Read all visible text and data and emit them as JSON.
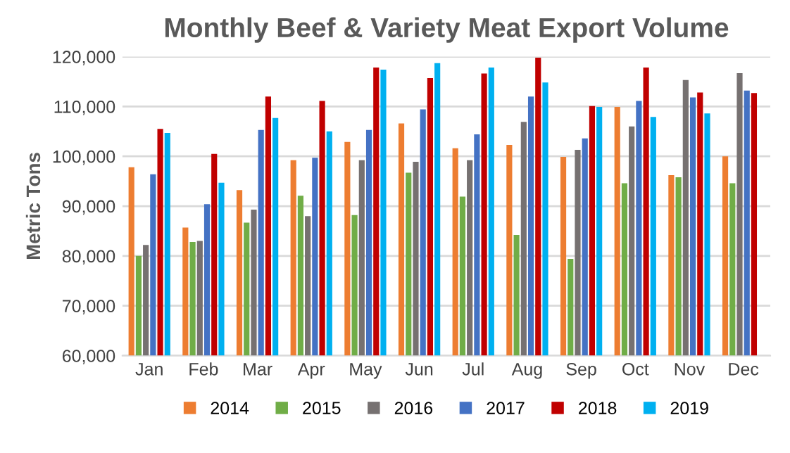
{
  "chart_data": {
    "type": "bar",
    "title": "Monthly Beef & Variety Meat Export Volume",
    "ylabel": "Metric Tons",
    "categories": [
      "Jan",
      "Feb",
      "Mar",
      "Apr",
      "May",
      "Jun",
      "Jul",
      "Aug",
      "Sep",
      "Oct",
      "Nov",
      "Dec"
    ],
    "series": [
      {
        "name": "2014",
        "color": "#ed7d31",
        "values": [
          97800,
          85700,
          93200,
          99200,
          102900,
          106600,
          101600,
          102300,
          99900,
          109900,
          96200,
          100000
        ]
      },
      {
        "name": "2015",
        "color": "#70ad47",
        "values": [
          80000,
          82800,
          86700,
          92100,
          88200,
          96700,
          91900,
          84200,
          79400,
          94600,
          95800,
          94600
        ]
      },
      {
        "name": "2016",
        "color": "#767171",
        "values": [
          82200,
          83000,
          89300,
          88000,
          99200,
          98900,
          99200,
          106900,
          101300,
          106000,
          115300,
          116700
        ]
      },
      {
        "name": "2017",
        "color": "#4472c4",
        "values": [
          96400,
          90400,
          105300,
          99700,
          105300,
          109400,
          104400,
          112000,
          103600,
          111100,
          111800,
          113200
        ]
      },
      {
        "name": "2018",
        "color": "#c00000",
        "values": [
          105500,
          100500,
          112000,
          111100,
          117800,
          115700,
          116600,
          119800,
          110100,
          117800,
          112800,
          112700
        ]
      },
      {
        "name": "2019",
        "color": "#00b0f0",
        "values": [
          104700,
          94700,
          107700,
          105000,
          117400,
          118700,
          117800,
          114800,
          109900,
          107900,
          108600,
          null
        ]
      }
    ],
    "ylim": [
      60000,
      120000
    ],
    "yticks": [
      {
        "value": 60000,
        "label": "60,000"
      },
      {
        "value": 70000,
        "label": "70,000"
      },
      {
        "value": 80000,
        "label": "80,000"
      },
      {
        "value": 90000,
        "label": "90,000"
      },
      {
        "value": 100000,
        "label": "100,000"
      },
      {
        "value": 110000,
        "label": "110,000"
      },
      {
        "value": 120000,
        "label": "120,000"
      }
    ],
    "grid": "y",
    "legend": "bottom"
  }
}
